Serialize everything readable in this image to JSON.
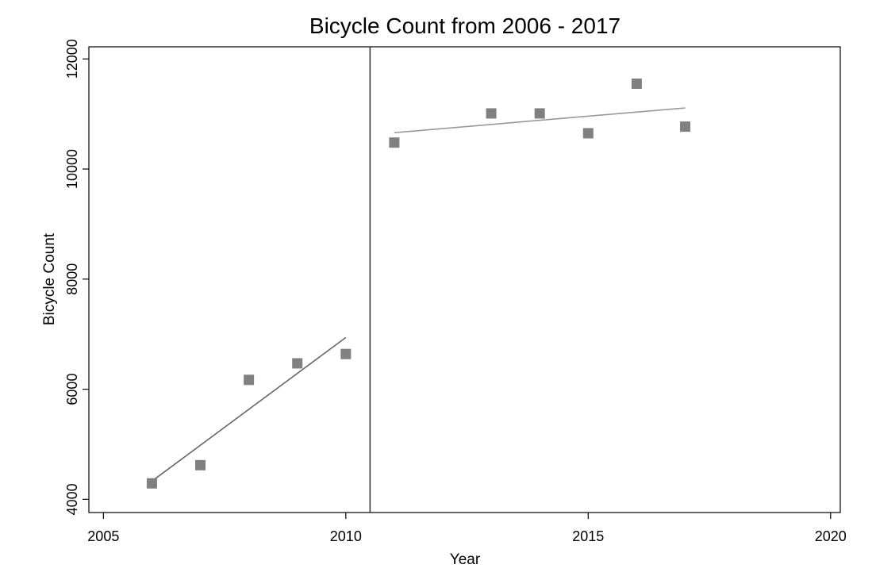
{
  "chart_data": {
    "type": "scatter",
    "title": "Bicycle Count from 2006 - 2017",
    "xlabel": "Year",
    "ylabel": "Bicycle Count",
    "xlim": [
      2004.7,
      2020.2
    ],
    "ylim": [
      3760,
      12220
    ],
    "x_ticks": [
      "2005",
      "2010",
      "2015",
      "2020"
    ],
    "y_ticks": [
      "4000",
      "6000",
      "8000",
      "10000",
      "12000"
    ],
    "grid": false,
    "series": [
      {
        "x": [
          2006,
          2007,
          2008,
          2009,
          2010,
          2011,
          2013,
          2014,
          2015,
          2016,
          2017
        ],
        "y": [
          4290,
          4620,
          6170,
          6470,
          6640,
          10480,
          11010,
          11010,
          10650,
          11550,
          10770
        ]
      }
    ],
    "fit_lines": [
      {
        "x": [
          2006,
          2010
        ],
        "y": [
          4330,
          6940
        ]
      },
      {
        "x": [
          2011,
          2017
        ],
        "y": [
          10660,
          11110
        ]
      }
    ],
    "reference_line_x": 2010.5,
    "colors": {
      "marker": "#808080",
      "fit_pre": "#666666",
      "fit_post": "#999999",
      "axis": "#000000"
    }
  }
}
